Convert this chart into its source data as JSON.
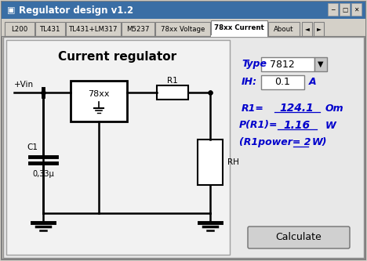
{
  "title_bar": "Regulator design v1.2",
  "tabs": [
    "L200",
    "TL431",
    "TL431+LM317",
    "M5237",
    "78xx Voltage",
    "78xx Current",
    "About"
  ],
  "active_tab": "78xx Current",
  "circuit_title": "Current regulator",
  "type_label": "Type",
  "type_value": "7812",
  "ih_label": "IH:",
  "ih_value": "0.1",
  "ih_unit": "A",
  "r1_label": "R1=",
  "r1_value": "124.1",
  "r1_unit": "Om",
  "pr1_label": "P(R1)=",
  "pr1_value": "1.16",
  "pr1_unit": "W",
  "r1power_label": "(R1power= 2",
  "r1power_unit": "W)",
  "button_text": "Calculate",
  "blue_color": "#0000cc"
}
